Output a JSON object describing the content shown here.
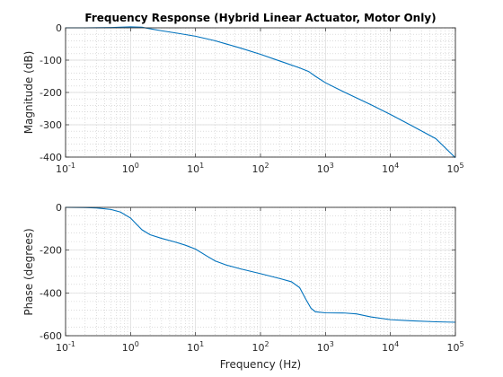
{
  "chart_data": [
    {
      "type": "line",
      "title": "Frequency Response (Hybrid Linear Actuator, Motor Only)",
      "xlabel": "",
      "ylabel": "Magnitude (dB)",
      "xscale": "log",
      "xlim": [
        0.1,
        100000
      ],
      "ylim": [
        -400,
        0
      ],
      "yticks": [
        0,
        -100,
        -200,
        -300,
        -400
      ],
      "yticklabels": [
        "0",
        "-100",
        "-200",
        "-300",
        "-400"
      ],
      "xticklabels": [
        {
          "base": "10",
          "exp": "-1"
        },
        {
          "base": "10",
          "exp": "0"
        },
        {
          "base": "10",
          "exp": "1"
        },
        {
          "base": "10",
          "exp": "2"
        },
        {
          "base": "10",
          "exp": "3"
        },
        {
          "base": "10",
          "exp": "4"
        },
        {
          "base": "10",
          "exp": "5"
        }
      ],
      "grid": true,
      "color": "#0072BD",
      "series": [
        {
          "x": [
            0.1,
            0.2,
            0.5,
            1.0,
            1.5,
            2.0,
            3.0,
            5.0,
            10,
            20,
            50,
            100,
            200,
            400,
            550,
            700,
            1000,
            2000,
            5000,
            10000,
            20000,
            50000,
            100000
          ],
          "y": [
            0,
            0,
            1,
            3,
            2,
            -3,
            -9,
            -16,
            -26,
            -40,
            -63,
            -82,
            -103,
            -124,
            -135,
            -150,
            -170,
            -200,
            -238,
            -268,
            -300,
            -343,
            -402
          ]
        }
      ]
    },
    {
      "type": "line",
      "title": "",
      "xlabel": "Frequency (Hz)",
      "ylabel": "Phase (degrees)",
      "xscale": "log",
      "xlim": [
        0.1,
        100000
      ],
      "ylim": [
        -600,
        0
      ],
      "yticks": [
        0,
        -200,
        -400,
        -600
      ],
      "yticklabels": [
        "0",
        "-200",
        "-400",
        "-600"
      ],
      "xticklabels": [
        {
          "base": "10",
          "exp": "-1"
        },
        {
          "base": "10",
          "exp": "0"
        },
        {
          "base": "10",
          "exp": "1"
        },
        {
          "base": "10",
          "exp": "2"
        },
        {
          "base": "10",
          "exp": "3"
        },
        {
          "base": "10",
          "exp": "4"
        },
        {
          "base": "10",
          "exp": "5"
        }
      ],
      "grid": true,
      "color": "#0072BD",
      "series": [
        {
          "x": [
            0.1,
            0.2,
            0.3,
            0.5,
            0.7,
            1.0,
            1.2,
            1.5,
            2.0,
            3.0,
            5.0,
            7.0,
            10,
            15,
            20,
            30,
            50,
            100,
            200,
            300,
            400,
            500,
            600,
            700,
            1000,
            2000,
            3000,
            5000,
            10000,
            20000,
            50000,
            100000
          ],
          "y": [
            0,
            -1,
            -3,
            -10,
            -22,
            -50,
            -75,
            -105,
            -128,
            -145,
            -163,
            -177,
            -195,
            -228,
            -250,
            -270,
            -288,
            -310,
            -333,
            -348,
            -375,
            -430,
            -472,
            -488,
            -493,
            -494,
            -498,
            -512,
            -525,
            -530,
            -535,
            -537
          ]
        }
      ]
    }
  ]
}
